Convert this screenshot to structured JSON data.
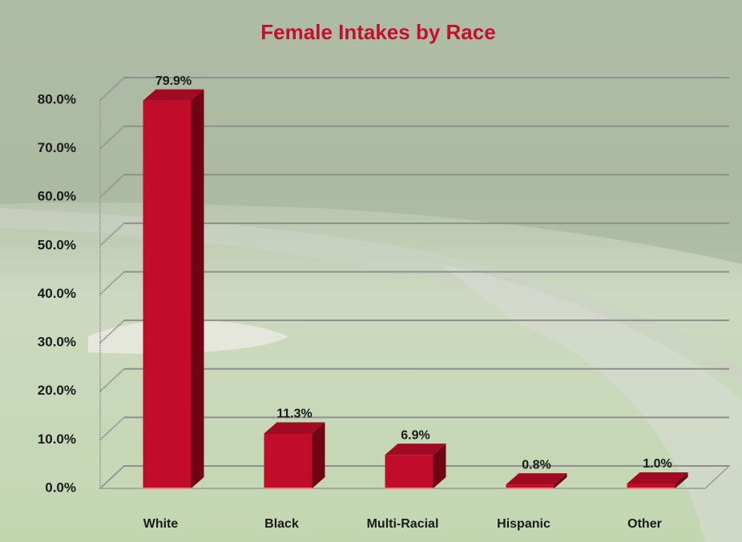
{
  "chart_data": {
    "type": "bar3d",
    "title": "Female Intakes by Race",
    "categories": [
      "White",
      "Black",
      "Multi-Racial",
      "Hispanic",
      "Other"
    ],
    "values": [
      79.9,
      11.3,
      6.9,
      0.8,
      1.0
    ],
    "value_labels": [
      "79.9%",
      "11.3%",
      "6.9%",
      "0.8%",
      "1.0%"
    ],
    "color": "#c20c2c",
    "ylim": [
      0,
      80
    ],
    "yticks": [
      {
        "value": 0,
        "label": "0.0%"
      },
      {
        "value": 10,
        "label": "10.0%"
      },
      {
        "value": 20,
        "label": "20.0%"
      },
      {
        "value": 30,
        "label": "30.0%"
      },
      {
        "value": 40,
        "label": "40.0%"
      },
      {
        "value": 50,
        "label": "50.0%"
      },
      {
        "value": 60,
        "label": "60.0%"
      },
      {
        "value": 70,
        "label": "70.0%"
      },
      {
        "value": 80,
        "label": "80.0%"
      }
    ],
    "grid": true
  }
}
